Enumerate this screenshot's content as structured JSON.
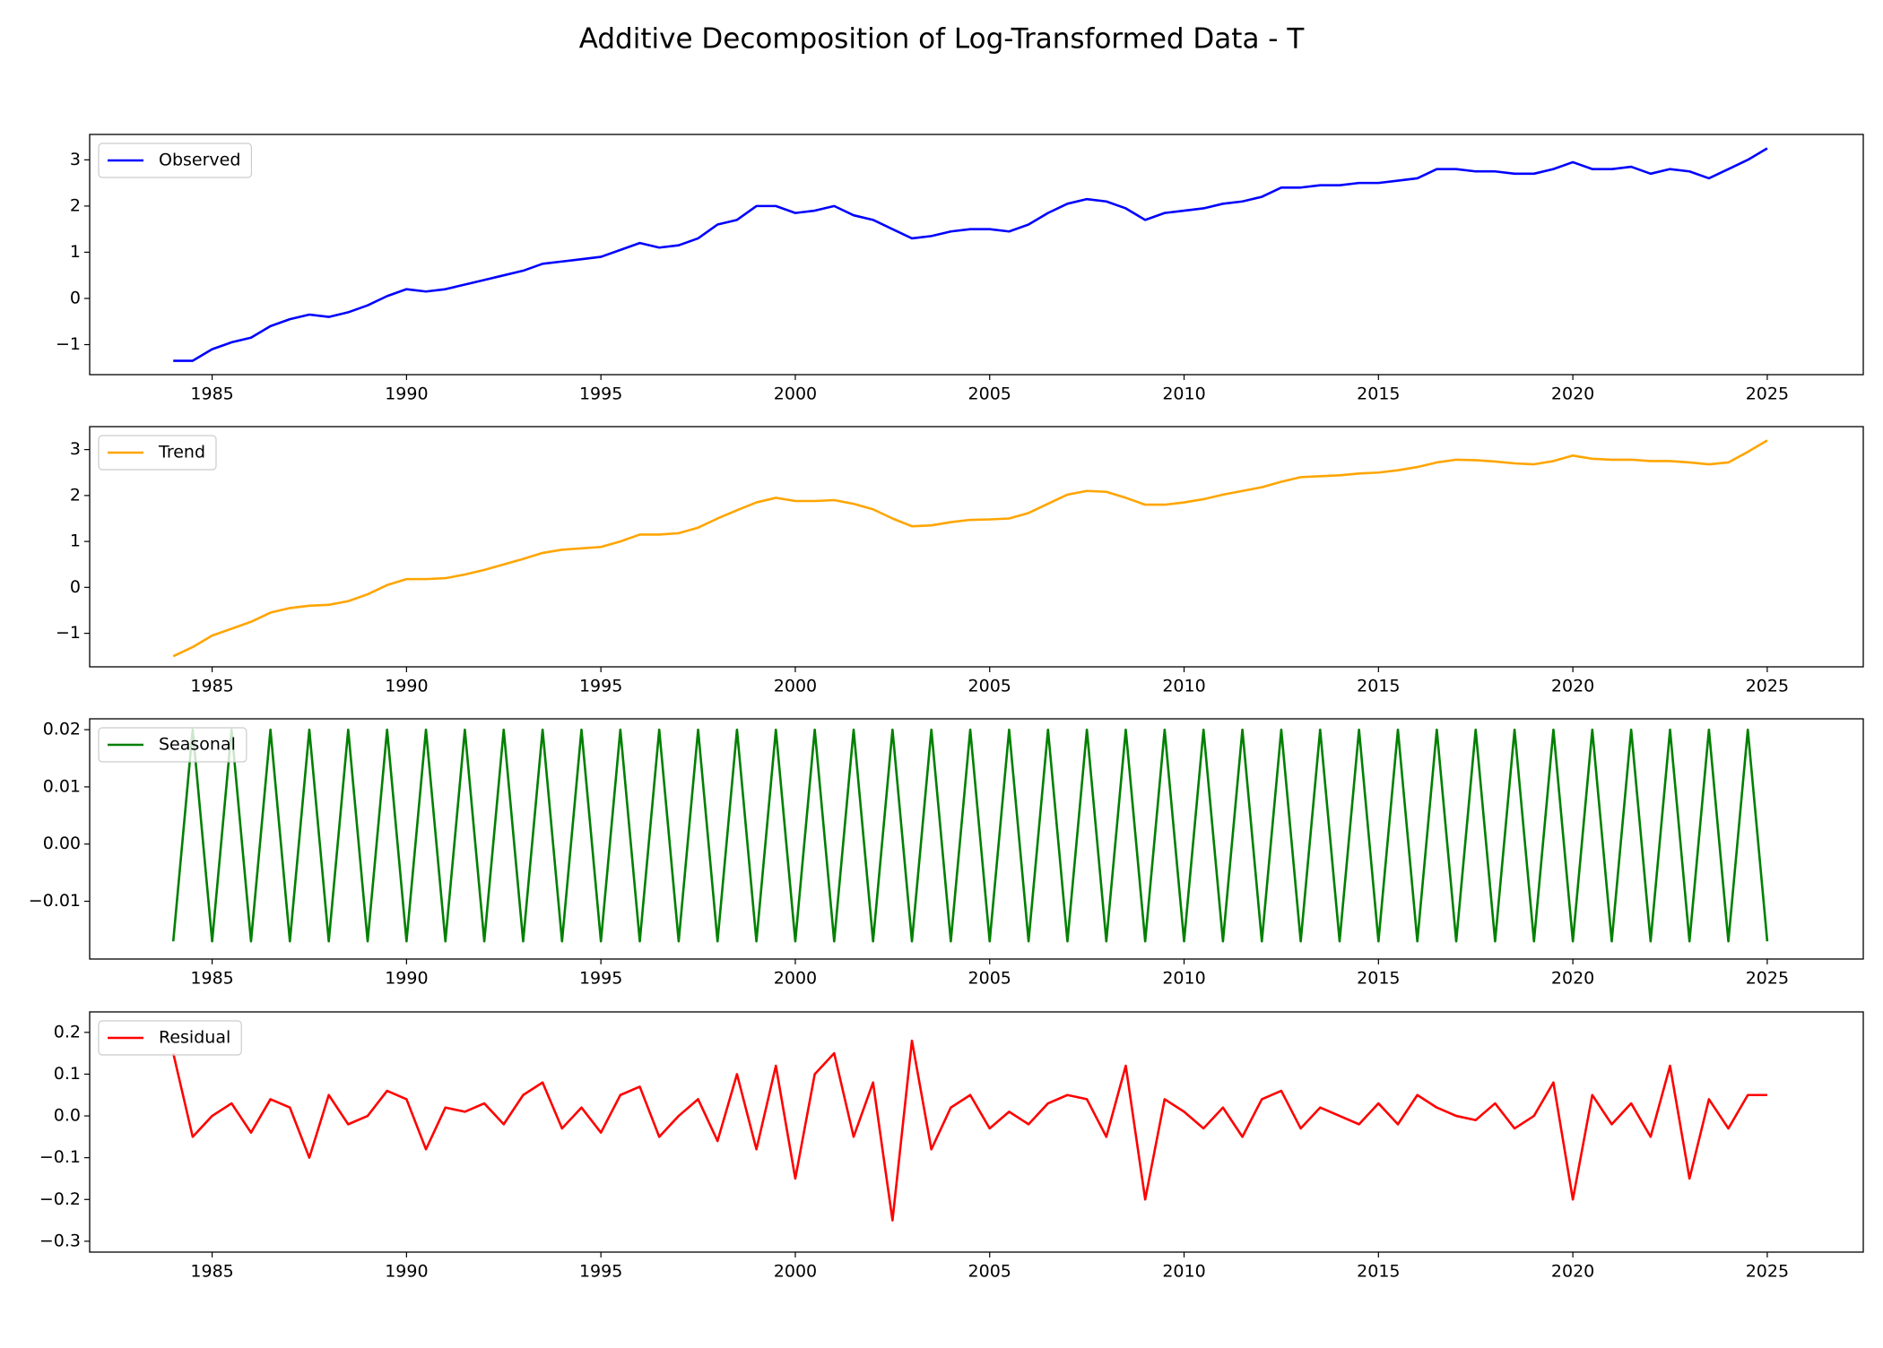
{
  "title": "Additive Decomposition of Log-Transformed Data - T",
  "chart_data": [
    {
      "type": "line",
      "x": [
        1984,
        1984.5,
        1985,
        1985.5,
        1986,
        1986.5,
        1987,
        1987.5,
        1988,
        1988.5,
        1989,
        1989.5,
        1990,
        1990.5,
        1991,
        1991.5,
        1992,
        1992.5,
        1993,
        1993.5,
        1994,
        1994.5,
        1995,
        1995.5,
        1996,
        1996.5,
        1997,
        1997.5,
        1998,
        1998.5,
        1999,
        1999.5,
        2000,
        2000.5,
        2001,
        2001.5,
        2002,
        2002.5,
        2003,
        2003.5,
        2004,
        2004.5,
        2005,
        2005.5,
        2006,
        2006.5,
        2007,
        2007.5,
        2008,
        2008.5,
        2009,
        2009.5,
        2010,
        2010.5,
        2011,
        2011.5,
        2012,
        2012.5,
        2013,
        2013.5,
        2014,
        2014.5,
        2015,
        2015.5,
        2016,
        2016.5,
        2017,
        2017.5,
        2018,
        2018.5,
        2019,
        2019.5,
        2020,
        2020.5,
        2021,
        2021.5,
        2022,
        2022.5,
        2023,
        2023.5,
        2024,
        2024.5,
        2025
      ],
      "series": [
        {
          "name": "Observed",
          "color": "#0000ff",
          "values": [
            -1.35,
            -1.35,
            -1.1,
            -0.95,
            -0.85,
            -0.6,
            -0.45,
            -0.35,
            -0.4,
            -0.3,
            -0.15,
            0.05,
            0.2,
            0.15,
            0.2,
            0.3,
            0.4,
            0.5,
            0.6,
            0.75,
            0.8,
            0.85,
            0.9,
            1.05,
            1.2,
            1.1,
            1.15,
            1.3,
            1.6,
            1.7,
            2.0,
            2.0,
            1.85,
            1.9,
            2.0,
            1.8,
            1.7,
            1.5,
            1.3,
            1.35,
            1.45,
            1.5,
            1.5,
            1.45,
            1.6,
            1.85,
            2.05,
            2.15,
            2.1,
            1.95,
            1.7,
            1.85,
            1.9,
            1.95,
            2.05,
            2.1,
            2.2,
            2.4,
            2.4,
            2.45,
            2.45,
            2.5,
            2.5,
            2.55,
            2.6,
            2.8,
            2.8,
            2.75,
            2.75,
            2.7,
            2.7,
            2.8,
            2.95,
            2.8,
            2.8,
            2.85,
            2.7,
            2.8,
            2.75,
            2.6,
            2.8,
            3.0,
            3.25
          ]
        }
      ],
      "xlim": [
        1981.85,
        2027.47
      ],
      "xticks": [
        1985,
        1990,
        1995,
        2000,
        2005,
        2010,
        2015,
        2020,
        2025
      ],
      "ylim": [
        -1.65,
        3.55
      ],
      "yticks": [
        {
          "value": -1,
          "label": "−1"
        },
        0,
        1,
        2,
        3
      ],
      "legend": "upper left"
    },
    {
      "type": "line",
      "x": [
        1984,
        1984.5,
        1985,
        1985.5,
        1986,
        1986.5,
        1987,
        1987.5,
        1988,
        1988.5,
        1989,
        1989.5,
        1990,
        1990.5,
        1991,
        1991.5,
        1992,
        1992.5,
        1993,
        1993.5,
        1994,
        1994.5,
        1995,
        1995.5,
        1996,
        1996.5,
        1997,
        1997.5,
        1998,
        1998.5,
        1999,
        1999.5,
        2000,
        2000.5,
        2001,
        2001.5,
        2002,
        2002.5,
        2003,
        2003.5,
        2004,
        2004.5,
        2005,
        2005.5,
        2006,
        2006.5,
        2007,
        2007.5,
        2008,
        2008.5,
        2009,
        2009.5,
        2010,
        2010.5,
        2011,
        2011.5,
        2012,
        2012.5,
        2013,
        2013.5,
        2014,
        2014.5,
        2015,
        2015.5,
        2016,
        2016.5,
        2017,
        2017.5,
        2018,
        2018.5,
        2019,
        2019.5,
        2020,
        2020.5,
        2021,
        2021.5,
        2022,
        2022.5,
        2023,
        2023.5,
        2024,
        2024.5,
        2025
      ],
      "series": [
        {
          "name": "Trend",
          "color": "#ffa500",
          "values": [
            -1.5,
            -1.3,
            -1.05,
            -0.9,
            -0.75,
            -0.55,
            -0.45,
            -0.4,
            -0.38,
            -0.3,
            -0.15,
            0.05,
            0.18,
            0.18,
            0.2,
            0.28,
            0.38,
            0.5,
            0.62,
            0.75,
            0.82,
            0.85,
            0.88,
            1.0,
            1.15,
            1.15,
            1.18,
            1.3,
            1.5,
            1.68,
            1.85,
            1.95,
            1.88,
            1.88,
            1.9,
            1.82,
            1.7,
            1.5,
            1.33,
            1.35,
            1.42,
            1.47,
            1.48,
            1.5,
            1.62,
            1.82,
            2.02,
            2.1,
            2.08,
            1.95,
            1.8,
            1.8,
            1.85,
            1.92,
            2.02,
            2.1,
            2.18,
            2.3,
            2.4,
            2.42,
            2.44,
            2.48,
            2.5,
            2.55,
            2.62,
            2.72,
            2.78,
            2.77,
            2.74,
            2.7,
            2.68,
            2.75,
            2.87,
            2.8,
            2.78,
            2.78,
            2.75,
            2.75,
            2.72,
            2.68,
            2.72,
            2.95,
            3.2
          ]
        }
      ],
      "xlim": [
        1981.85,
        2027.47
      ],
      "xticks": [
        1985,
        1990,
        1995,
        2000,
        2005,
        2010,
        2015,
        2020,
        2025
      ],
      "ylim": [
        -1.73,
        3.5
      ],
      "yticks": [
        {
          "value": -1,
          "label": "−1"
        },
        0,
        1,
        2,
        3
      ],
      "legend": "upper left"
    },
    {
      "type": "line",
      "x": [
        1984,
        1984.5,
        1985,
        1985.5,
        1986,
        1986.5,
        1987,
        1987.5,
        1988,
        1988.5,
        1989,
        1989.5,
        1990,
        1990.5,
        1991,
        1991.5,
        1992,
        1992.5,
        1993,
        1993.5,
        1994,
        1994.5,
        1995,
        1995.5,
        1996,
        1996.5,
        1997,
        1997.5,
        1998,
        1998.5,
        1999,
        1999.5,
        2000,
        2000.5,
        2001,
        2001.5,
        2002,
        2002.5,
        2003,
        2003.5,
        2004,
        2004.5,
        2005,
        2005.5,
        2006,
        2006.5,
        2007,
        2007.5,
        2008,
        2008.5,
        2009,
        2009.5,
        2010,
        2010.5,
        2011,
        2011.5,
        2012,
        2012.5,
        2013,
        2013.5,
        2014,
        2014.5,
        2015,
        2015.5,
        2016,
        2016.5,
        2017,
        2017.5,
        2018,
        2018.5,
        2019,
        2019.5,
        2020,
        2020.5,
        2021,
        2021.5,
        2022,
        2022.5,
        2023,
        2023.5,
        2024,
        2024.5,
        2025
      ],
      "series": [
        {
          "name": "Seasonal",
          "color": "#008000",
          "values": [
            -0.017,
            0.02,
            -0.017,
            0.02,
            -0.017,
            0.02,
            -0.017,
            0.02,
            -0.017,
            0.02,
            -0.017,
            0.02,
            -0.017,
            0.02,
            -0.017,
            0.02,
            -0.017,
            0.02,
            -0.017,
            0.02,
            -0.017,
            0.02,
            -0.017,
            0.02,
            -0.017,
            0.02,
            -0.017,
            0.02,
            -0.017,
            0.02,
            -0.017,
            0.02,
            -0.017,
            0.02,
            -0.017,
            0.02,
            -0.017,
            0.02,
            -0.017,
            0.02,
            -0.017,
            0.02,
            -0.017,
            0.02,
            -0.017,
            0.02,
            -0.017,
            0.02,
            -0.017,
            0.02,
            -0.017,
            0.02,
            -0.017,
            0.02,
            -0.017,
            0.02,
            -0.017,
            0.02,
            -0.017,
            0.02,
            -0.017,
            0.02,
            -0.017,
            0.02,
            -0.017,
            0.02,
            -0.017,
            0.02,
            -0.017,
            0.02,
            -0.017,
            0.02,
            -0.017,
            0.02,
            -0.017,
            0.02,
            -0.017,
            0.02,
            -0.017,
            0.02,
            -0.017,
            0.02,
            -0.017
          ]
        }
      ],
      "xlim": [
        1981.85,
        2027.47
      ],
      "xticks": [
        1985,
        1990,
        1995,
        2000,
        2005,
        2010,
        2015,
        2020,
        2025
      ],
      "ylim": [
        -0.0201,
        0.0219
      ],
      "yticks": [
        {
          "value": -0.01,
          "label": "−0.01"
        },
        {
          "value": 0,
          "label": "0.00"
        },
        0.01,
        0.02
      ],
      "legend": "upper left"
    },
    {
      "type": "line",
      "x": [
        1984,
        1984.5,
        1985,
        1985.5,
        1986,
        1986.5,
        1987,
        1987.5,
        1988,
        1988.5,
        1989,
        1989.5,
        1990,
        1990.5,
        1991,
        1991.5,
        1992,
        1992.5,
        1993,
        1993.5,
        1994,
        1994.5,
        1995,
        1995.5,
        1996,
        1996.5,
        1997,
        1997.5,
        1998,
        1998.5,
        1999,
        1999.5,
        2000,
        2000.5,
        2001,
        2001.5,
        2002,
        2002.5,
        2003,
        2003.5,
        2004,
        2004.5,
        2005,
        2005.5,
        2006,
        2006.5,
        2007,
        2007.5,
        2008,
        2008.5,
        2009,
        2009.5,
        2010,
        2010.5,
        2011,
        2011.5,
        2012,
        2012.5,
        2013,
        2013.5,
        2014,
        2014.5,
        2015,
        2015.5,
        2016,
        2016.5,
        2017,
        2017.5,
        2018,
        2018.5,
        2019,
        2019.5,
        2020,
        2020.5,
        2021,
        2021.5,
        2022,
        2022.5,
        2023,
        2023.5,
        2024,
        2024.5,
        2025
      ],
      "series": [
        {
          "name": "Residual",
          "color": "#ff0000",
          "values": [
            0.15,
            -0.05,
            0.0,
            0.03,
            -0.04,
            0.04,
            0.02,
            -0.1,
            0.05,
            -0.02,
            0.0,
            0.06,
            0.04,
            -0.08,
            0.02,
            0.01,
            0.03,
            -0.02,
            0.05,
            0.08,
            -0.03,
            0.02,
            -0.04,
            0.05,
            0.07,
            -0.05,
            0.0,
            0.04,
            -0.06,
            0.1,
            -0.08,
            0.12,
            -0.15,
            0.1,
            0.15,
            -0.05,
            0.08,
            -0.25,
            0.18,
            -0.08,
            0.02,
            0.05,
            -0.03,
            0.01,
            -0.02,
            0.03,
            0.05,
            0.04,
            -0.05,
            0.12,
            -0.2,
            0.04,
            0.01,
            -0.03,
            0.02,
            -0.05,
            0.04,
            0.06,
            -0.03,
            0.02,
            0.0,
            -0.02,
            0.03,
            -0.02,
            0.05,
            0.02,
            0.0,
            -0.01,
            0.03,
            -0.03,
            0.0,
            0.08,
            -0.2,
            0.05,
            -0.02,
            0.03,
            -0.05,
            0.12,
            -0.15,
            0.04,
            -0.03,
            0.05,
            0.05
          ]
        }
      ],
      "xlim": [
        1981.85,
        2027.47
      ],
      "xticks": [
        1985,
        1990,
        1995,
        2000,
        2005,
        2010,
        2015,
        2020,
        2025
      ],
      "ylim": [
        -0.326,
        0.249
      ],
      "yticks": [
        {
          "value": -0.3,
          "label": "−0.3"
        },
        {
          "value": -0.2,
          "label": "−0.2"
        },
        {
          "value": -0.1,
          "label": "−0.1"
        },
        {
          "value": 0,
          "label": "0.0"
        },
        0.1,
        0.2
      ],
      "legend": "upper left"
    }
  ]
}
